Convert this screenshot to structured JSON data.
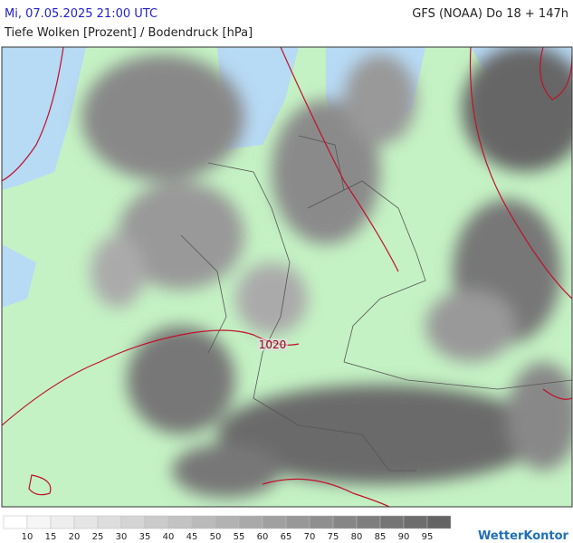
{
  "header": {
    "datetime": "Mi, 07.05.2025 21:00 UTC",
    "model": "GFS (NOAA) Do 18 + 147h",
    "subtitle": "Tiefe Wolken [Prozent] / Bodendruck [hPa]"
  },
  "map": {
    "isobar_label": "1020"
  },
  "legend": {
    "labels": [
      "10",
      "15",
      "20",
      "25",
      "30",
      "35",
      "40",
      "45",
      "50",
      "55",
      "60",
      "65",
      "70",
      "75",
      "80",
      "85",
      "90",
      "95"
    ]
  },
  "brand": "WetterKontor"
}
